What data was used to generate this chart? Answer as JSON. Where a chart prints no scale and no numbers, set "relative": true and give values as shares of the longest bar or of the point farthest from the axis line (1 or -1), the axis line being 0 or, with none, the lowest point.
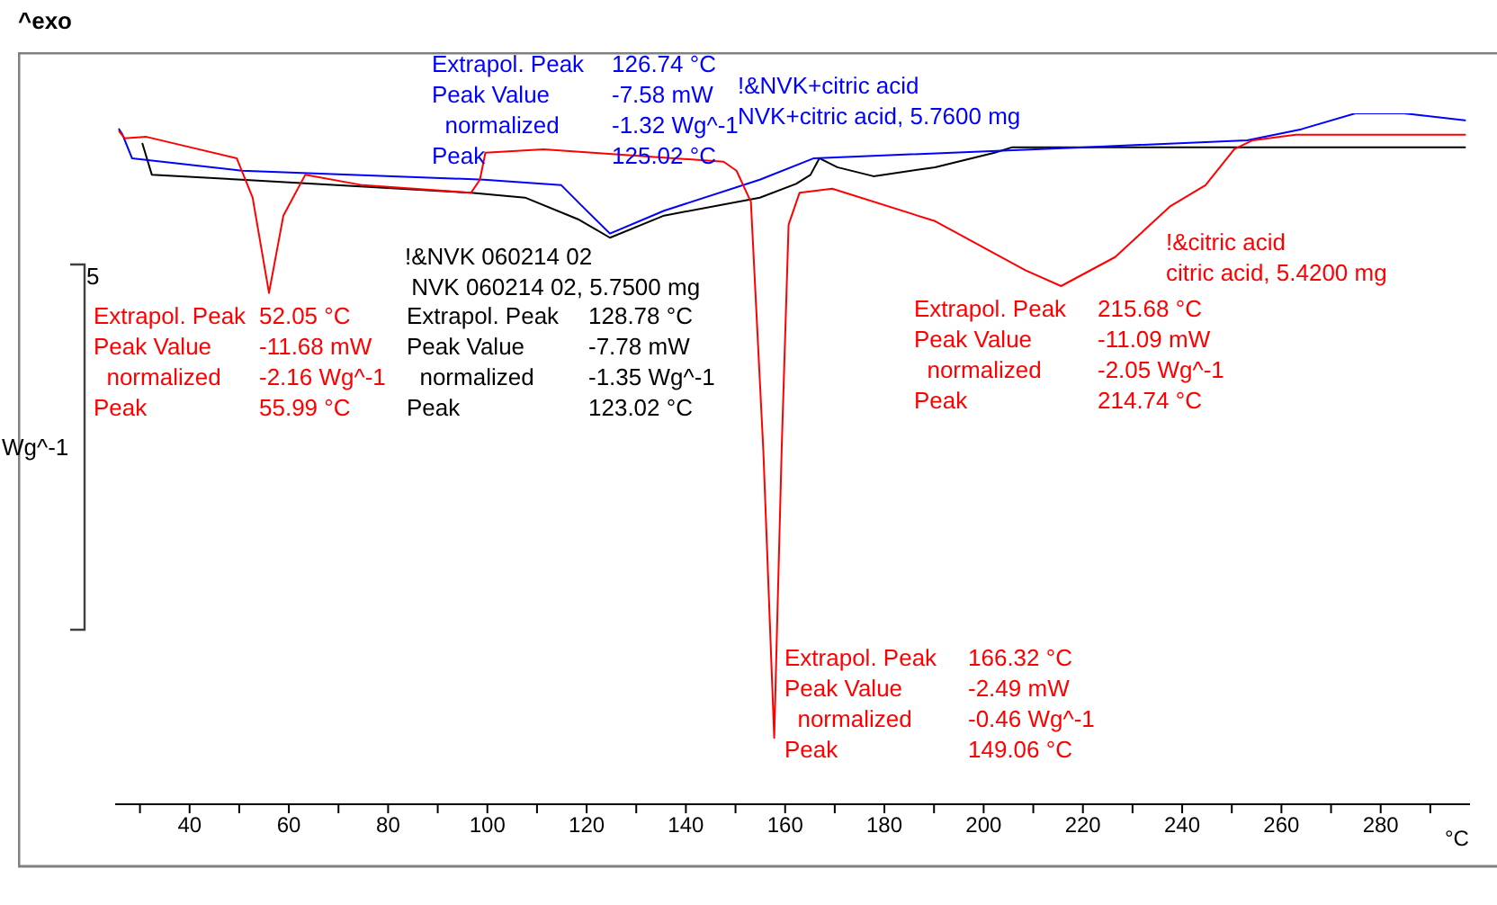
{
  "chart_data": {
    "type": "line",
    "relative": true,
    "ylabel": "^exo",
    "xlabel": "°C",
    "xlim": [
      25,
      298
    ],
    "xticks": [
      {
        "value": 30,
        "label": null
      },
      40,
      {
        "value": 50,
        "label": null
      },
      60,
      {
        "value": 70,
        "label": null
      },
      80,
      {
        "value": 90,
        "label": null
      },
      100,
      {
        "value": 110,
        "label": null
      },
      120,
      {
        "value": 130,
        "label": null
      },
      140,
      {
        "value": 150,
        "label": null
      },
      160,
      {
        "value": 170,
        "label": null
      },
      180,
      {
        "value": 190,
        "label": null
      },
      200,
      {
        "value": 210,
        "label": null
      },
      220,
      {
        "value": 230,
        "label": null
      },
      240,
      {
        "value": 250,
        "label": null
      },
      260,
      {
        "value": 270,
        "label": null
      },
      280,
      {
        "value": 290,
        "label": null
      }
    ],
    "series": [
      {
        "color": "#000000",
        "x": [
          30.5,
          32.4,
          50.5,
          96.7,
          107.6,
          118.5,
          124.7,
          135.6,
          154.9,
          162.2,
          165.1,
          166.9,
          170.5,
          177.8,
          190.2,
          202.2,
          205.8,
          232.4,
          297
        ],
        "values": [
          0.956,
          0.911,
          0.904,
          0.885,
          0.878,
          0.846,
          0.82,
          0.852,
          0.878,
          0.898,
          0.911,
          0.935,
          0.922,
          0.909,
          0.922,
          0.943,
          0.951,
          0.951,
          0.951
        ]
      },
      {
        "color": "#0000ff",
        "x": [
          25.8,
          26.5,
          28.4,
          50.5,
          99.3,
          114.9,
          118.5,
          124.7,
          135.6,
          154.9,
          165.8,
          220.4,
          253.1,
          264,
          274.9,
          284.7,
          297
        ],
        "values": [
          0.977,
          0.969,
          0.935,
          0.917,
          0.904,
          0.896,
          0.87,
          0.826,
          0.859,
          0.904,
          0.935,
          0.951,
          0.961,
          0.977,
          1,
          1,
          0.99
        ]
      },
      {
        "color": "#ff0000",
        "x": [
          25.8,
          26.9,
          31.3,
          49.5,
          52.7,
          56,
          58.9,
          63.3,
          74.9,
          96.7,
          98.5,
          99.6,
          111.3,
          147.6,
          150.2,
          153.1,
          155.6,
          157.8,
          159.3,
          160.7,
          162.9,
          169.5,
          190.2,
          208.4,
          215.6,
          226.5,
          237.5,
          244.7,
          250.5,
          254.2,
          262.9,
          297
        ],
        "values": [
          0.974,
          0.964,
          0.966,
          0.935,
          0.878,
          0.74,
          0.852,
          0.911,
          0.896,
          0.885,
          0.904,
          0.943,
          0.948,
          0.93,
          0.917,
          0.872,
          0.513,
          0.096,
          0.513,
          0.839,
          0.885,
          0.891,
          0.844,
          0.773,
          0.75,
          0.792,
          0.865,
          0.896,
          0.948,
          0.961,
          0.969,
          0.969
        ]
      }
    ],
    "annotations": [
      "!&NVK+citric acid\nNVK+citric acid, 5.7600 mg",
      "Extrapol. Peak\t126.74 °C\nPeak Value\t-7.58 mW\n  normalized\t-1.32 Wg^-1\nPeak\t125.02 °C",
      "!&NVK 060214 02\n NVK 060214 02, 5.7500 mg",
      "Extrapol. Peak\t128.78 °C\nPeak Value\t-7.78 mW\n  normalized\t-1.35 Wg^-1\nPeak\t123.02 °C",
      "!&citric acid\ncitric acid, 5.4200 mg",
      "Extrapol. Peak\t52.05 °C\nPeak Value\t-11.68 mW\n  normalized\t-2.16 Wg^-1\nPeak\t55.99 °C",
      "Extrapol. Peak\t215.68 °C\nPeak Value\t-11.09 mW\n  normalized\t-2.05 Wg^-1\nPeak\t214.74 °C",
      "Extrapol. Peak\t166.32 °C\nPeak Value\t-2.49 mW\n  normalized\t-0.46 Wg^-1\nPeak\t149.06 °C",
      "5",
      "Wg^-1"
    ]
  }
}
